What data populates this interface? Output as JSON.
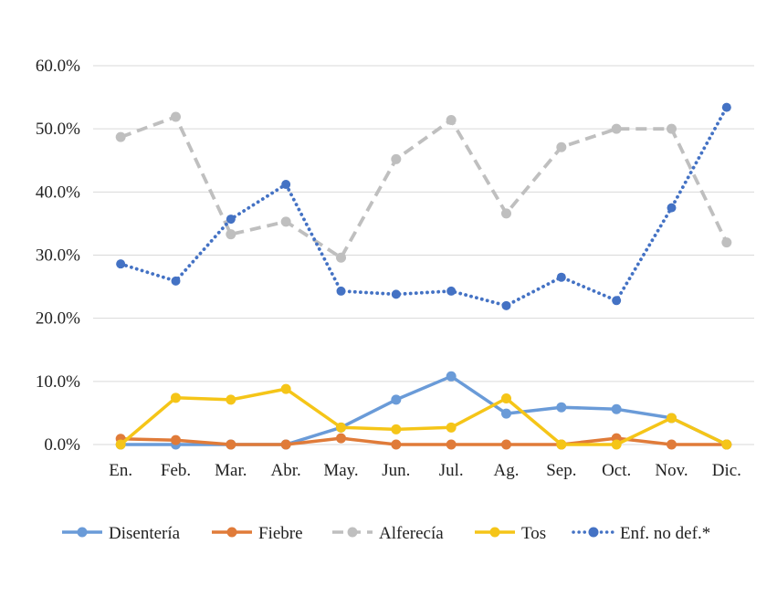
{
  "chart_data": {
    "type": "line",
    "title": "",
    "xlabel": "",
    "ylabel": "",
    "ylim": [
      0,
      0.6
    ],
    "y_ticks": [
      0,
      0.1,
      0.2,
      0.3,
      0.4,
      0.5,
      0.6
    ],
    "y_tick_labels": [
      "0.0%",
      "10.0%",
      "20.0%",
      "30.0%",
      "40.0%",
      "50.0%",
      "60.0%"
    ],
    "grid": true,
    "legend_position": "bottom",
    "categories": [
      "En.",
      "Feb.",
      "Mar.",
      "Abr.",
      "May.",
      "Jun.",
      "Jul.",
      "Ag.",
      "Sep.",
      "Oct.",
      "Nov.",
      "Dic."
    ],
    "series": [
      {
        "name": "Disentería",
        "color": "#6a9bd8",
        "dash": "solid",
        "values": [
          0.0,
          0.0,
          0.0,
          0.0,
          0.027,
          0.071,
          0.108,
          0.049,
          0.059,
          0.056,
          0.042,
          0.0
        ]
      },
      {
        "name": "Fiebre",
        "color": "#e07b39",
        "dash": "solid",
        "values": [
          0.009,
          0.007,
          0.0,
          0.0,
          0.01,
          0.0,
          0.0,
          0.0,
          0.0,
          0.01,
          0.0,
          0.0
        ]
      },
      {
        "name": "Alferecía",
        "color": "#bfbfbf",
        "dash": "dashed",
        "values": [
          0.487,
          0.519,
          0.333,
          0.353,
          0.296,
          0.452,
          0.514,
          0.366,
          0.471,
          0.5,
          0.5,
          0.32
        ]
      },
      {
        "name": "Tos",
        "color": "#f5c518",
        "dash": "solid",
        "values": [
          0.0,
          0.074,
          0.071,
          0.088,
          0.027,
          0.024,
          0.027,
          0.073,
          0.0,
          0.0,
          0.042,
          0.0
        ]
      },
      {
        "name": "Enf. no def.*",
        "color": "#4472c4",
        "dash": "dotted",
        "values": [
          0.286,
          0.259,
          0.357,
          0.412,
          0.243,
          0.238,
          0.243,
          0.22,
          0.265,
          0.228,
          0.375,
          0.534
        ]
      }
    ]
  }
}
